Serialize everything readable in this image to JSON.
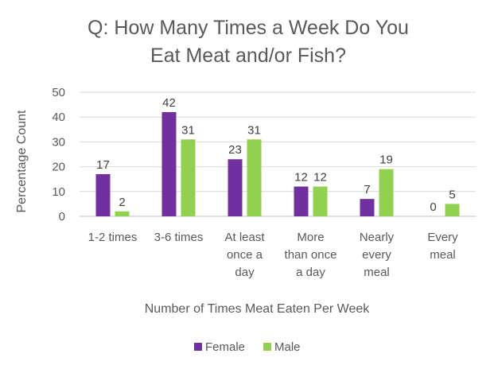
{
  "chart_data": {
    "type": "bar",
    "title_lines": [
      "Q: How Many Times a Week Do You",
      "Eat Meat and/or Fish?"
    ],
    "xlabel": "Number of Times Meat Eaten Per Week",
    "ylabel": "Percentage Count",
    "ylim": [
      0,
      50
    ],
    "yticks": [
      0,
      10,
      20,
      30,
      40,
      50
    ],
    "grid": true,
    "legend_position": "bottom",
    "categories": [
      [
        "1-2 times"
      ],
      [
        "3-6 times"
      ],
      [
        "At least",
        "once a",
        "day"
      ],
      [
        "More",
        "than once",
        "a day"
      ],
      [
        "Nearly",
        "every",
        "meal"
      ],
      [
        "Every",
        "meal"
      ]
    ],
    "series": [
      {
        "name": "Female",
        "color": "#7030a0",
        "values": [
          17,
          42,
          23,
          12,
          7,
          0
        ]
      },
      {
        "name": "Male",
        "color": "#92d050",
        "values": [
          2,
          31,
          31,
          12,
          19,
          5
        ]
      }
    ]
  }
}
